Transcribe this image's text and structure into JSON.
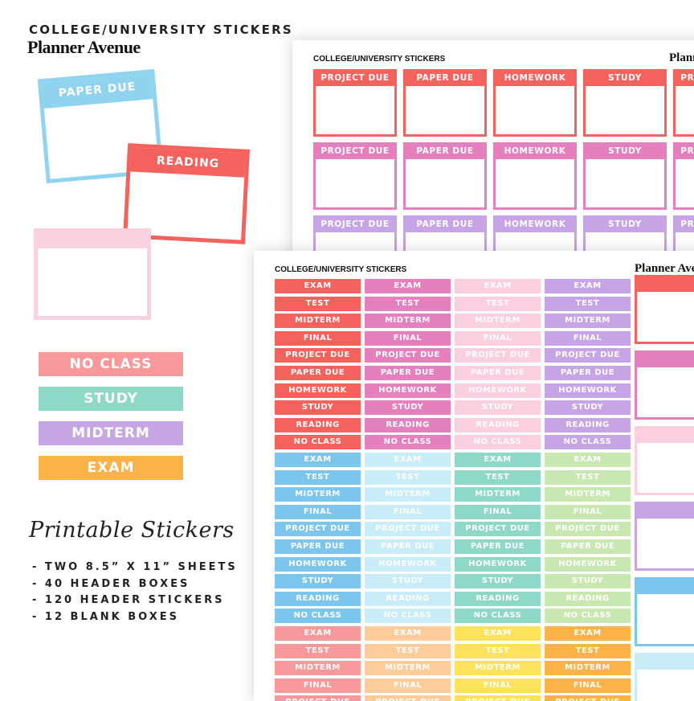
{
  "brand": {
    "subtitle": "COLLEGE/UNIVERSITY STICKERS",
    "name": "Planner Avenue"
  },
  "samples": {
    "boxes": [
      {
        "label": "PAPER DUE",
        "color": "#8fd3ef"
      },
      {
        "label": "READING",
        "color": "#f4625d"
      },
      {
        "label": "",
        "color": "#fbd0df"
      }
    ],
    "labels": [
      {
        "text": "NO CLASS",
        "color": "#f7999a"
      },
      {
        "text": "STUDY",
        "color": "#8ed8c8"
      },
      {
        "text": "MIDTERM",
        "color": "#c6a6e4"
      },
      {
        "text": "EXAM",
        "color": "#fbb246"
      }
    ]
  },
  "product": {
    "title": "Printable Stickers",
    "features": [
      "- TWO 8.5” X 11” SHEETS",
      "- 40 HEADER BOXES",
      "- 120 HEADER STICKERS",
      "- 12 BLANK BOXES"
    ]
  },
  "sheet_back": {
    "title": "COLLEGE/UNIVERSITY STICKERS",
    "brand": "Planner Avenue",
    "column_labels": [
      "PROJECT DUE",
      "PAPER DUE",
      "HOMEWORK",
      "STUDY"
    ],
    "row_colors": [
      "#f4625d",
      "#e67fbe",
      "#c7a4e5"
    ]
  },
  "sheet_front": {
    "title": "COLLEGE/UNIVERSITY STICKERS",
    "brand": "Planner Avenue",
    "labels": [
      "EXAM",
      "TEST",
      "MIDTERM",
      "FINAL",
      "PROJECT DUE",
      "PAPER DUE",
      "HOMEWORK",
      "STUDY",
      "READING",
      "NO CLASS"
    ],
    "color_blocks": [
      [
        "#f4625d",
        "#e67fbe",
        "#fbcfe0",
        "#c7a4e5"
      ],
      [
        "#7cc5ec",
        "#c8ecf8",
        "#8ed8c8",
        "#c9e8b1"
      ],
      [
        "#f7999a",
        "#fdcc9a",
        "#fde35c",
        "#fbb246"
      ]
    ],
    "side_colors": [
      "#f4625d",
      "#e67fbe",
      "#fbcfe0",
      "#c7a4e5",
      "#7cc5ec",
      "#c8ecf8"
    ]
  }
}
